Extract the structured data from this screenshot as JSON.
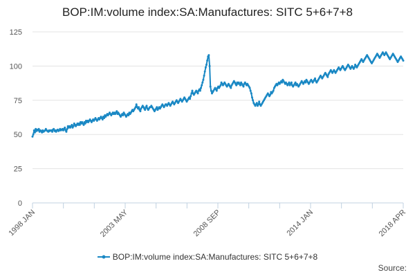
{
  "chart_data": {
    "type": "line",
    "title": "BOP:IM:volume index:SA:Manufactures: SITC 5+6+7+8",
    "xlabel": "",
    "ylabel": "",
    "ylim": [
      0,
      125
    ],
    "yticks": [
      0,
      25,
      50,
      75,
      100,
      125
    ],
    "grid": true,
    "legend_position": "bottom",
    "x_tick_labels": [
      "1998 JAN",
      "2003 MAY",
      "2008 SEP",
      "2014 JAN",
      "2018 APR"
    ],
    "series": [
      {
        "name": "BOP:IM:volume index:SA:Manufactures: SITC 5+6+7+8",
        "color": "#1a88c4",
        "values": [
          48.5,
          50,
          53,
          51.5,
          54,
          52.5,
          53.5,
          53,
          54,
          52,
          53,
          52.5,
          51.5,
          53,
          52,
          52.5,
          53,
          54,
          53,
          52.5,
          52,
          53,
          52.5,
          53,
          53,
          52,
          53.5,
          54,
          52.5,
          53,
          52,
          53,
          53.5,
          52.5,
          53,
          54,
          53,
          53.5,
          54,
          53,
          54,
          55,
          53,
          52,
          54,
          56,
          55,
          56,
          55,
          56,
          57,
          55,
          56,
          58,
          57,
          56,
          57,
          58,
          57,
          58,
          57,
          59,
          58,
          59,
          58,
          57,
          59,
          58,
          60,
          59,
          60,
          59,
          60,
          61,
          60,
          59,
          60,
          61,
          60,
          61,
          62,
          61,
          60,
          61,
          62,
          61,
          62,
          63,
          62,
          61,
          63,
          62,
          64,
          63,
          64,
          65,
          64,
          65,
          66,
          65,
          64,
          65,
          66,
          65,
          66,
          65,
          66,
          67,
          65,
          66,
          65,
          64,
          63,
          64,
          65,
          64,
          66,
          65,
          64,
          63,
          64,
          65,
          64,
          66,
          65,
          66,
          67,
          68,
          67,
          68,
          69,
          70,
          72,
          70,
          69,
          70,
          68,
          67,
          69,
          70,
          71,
          70,
          69,
          68,
          70,
          71,
          69,
          68,
          69,
          70,
          70,
          71,
          70,
          69,
          68,
          67,
          68,
          69,
          70,
          68,
          69,
          70,
          69,
          70,
          71,
          72,
          71,
          70,
          71,
          72,
          72,
          71,
          72,
          73,
          72,
          71,
          72,
          73,
          74,
          73,
          72,
          73,
          74,
          75,
          74,
          73,
          74,
          75,
          76,
          75,
          74,
          75,
          76,
          77,
          76,
          75,
          74,
          75,
          76,
          77,
          76,
          78,
          80,
          82,
          80,
          79,
          80,
          81,
          82,
          81,
          80,
          82,
          83,
          82,
          84,
          86,
          88,
          90,
          93,
          96,
          99,
          101,
          104,
          107,
          108,
          100,
          85,
          82,
          80,
          81,
          82,
          83,
          84,
          83,
          82,
          84,
          85,
          84,
          85,
          86,
          88,
          87,
          86,
          87,
          88,
          87,
          86,
          85,
          86,
          87,
          86,
          85,
          84,
          86,
          87,
          88,
          89,
          88,
          87,
          86,
          88,
          87,
          88,
          87,
          86,
          88,
          87,
          86,
          85,
          87,
          88,
          87,
          86,
          87,
          86,
          85,
          84,
          82,
          80,
          77,
          75,
          73,
          72,
          71,
          72,
          73,
          71,
          72,
          74,
          72,
          71,
          72,
          73,
          74,
          75,
          76,
          77,
          78,
          79,
          80,
          79,
          78,
          79,
          81,
          80,
          81,
          82,
          84,
          85,
          86,
          87,
          86,
          87,
          88,
          87,
          88,
          89,
          88,
          90,
          89,
          88,
          87,
          88,
          87,
          86,
          87,
          88,
          86,
          87,
          88,
          86,
          85,
          86,
          87,
          88,
          86,
          87,
          86,
          85,
          86,
          87,
          88,
          89,
          88,
          87,
          88,
          89,
          88,
          90,
          89,
          88,
          87,
          88,
          89,
          90,
          89,
          88,
          89,
          90,
          91,
          89,
          88,
          89,
          90,
          91,
          92,
          93,
          92,
          91,
          92,
          93,
          94,
          95,
          94,
          93,
          92,
          94,
          95,
          96,
          97,
          96,
          95,
          96,
          97,
          96,
          95,
          96,
          97,
          98,
          99,
          98,
          97,
          98,
          99,
          100,
          99,
          98,
          97,
          98,
          99,
          100,
          101,
          100,
          99,
          98,
          99,
          100,
          99,
          98,
          99,
          101,
          100,
          99,
          100,
          101,
          102,
          103,
          104,
          105,
          104,
          103,
          104,
          105,
          106,
          107,
          108,
          107,
          106,
          105,
          104,
          103,
          102,
          103,
          104,
          105,
          106,
          107,
          108,
          109,
          108,
          107,
          106,
          107,
          108,
          109,
          110,
          109,
          108,
          109,
          110,
          109,
          108,
          107,
          106,
          105,
          106,
          107,
          108,
          109,
          108,
          107,
          106,
          105,
          104,
          103,
          104,
          105,
          106,
          107,
          106,
          105,
          104
        ]
      }
    ]
  },
  "footer": {
    "source_label": "Source:"
  }
}
